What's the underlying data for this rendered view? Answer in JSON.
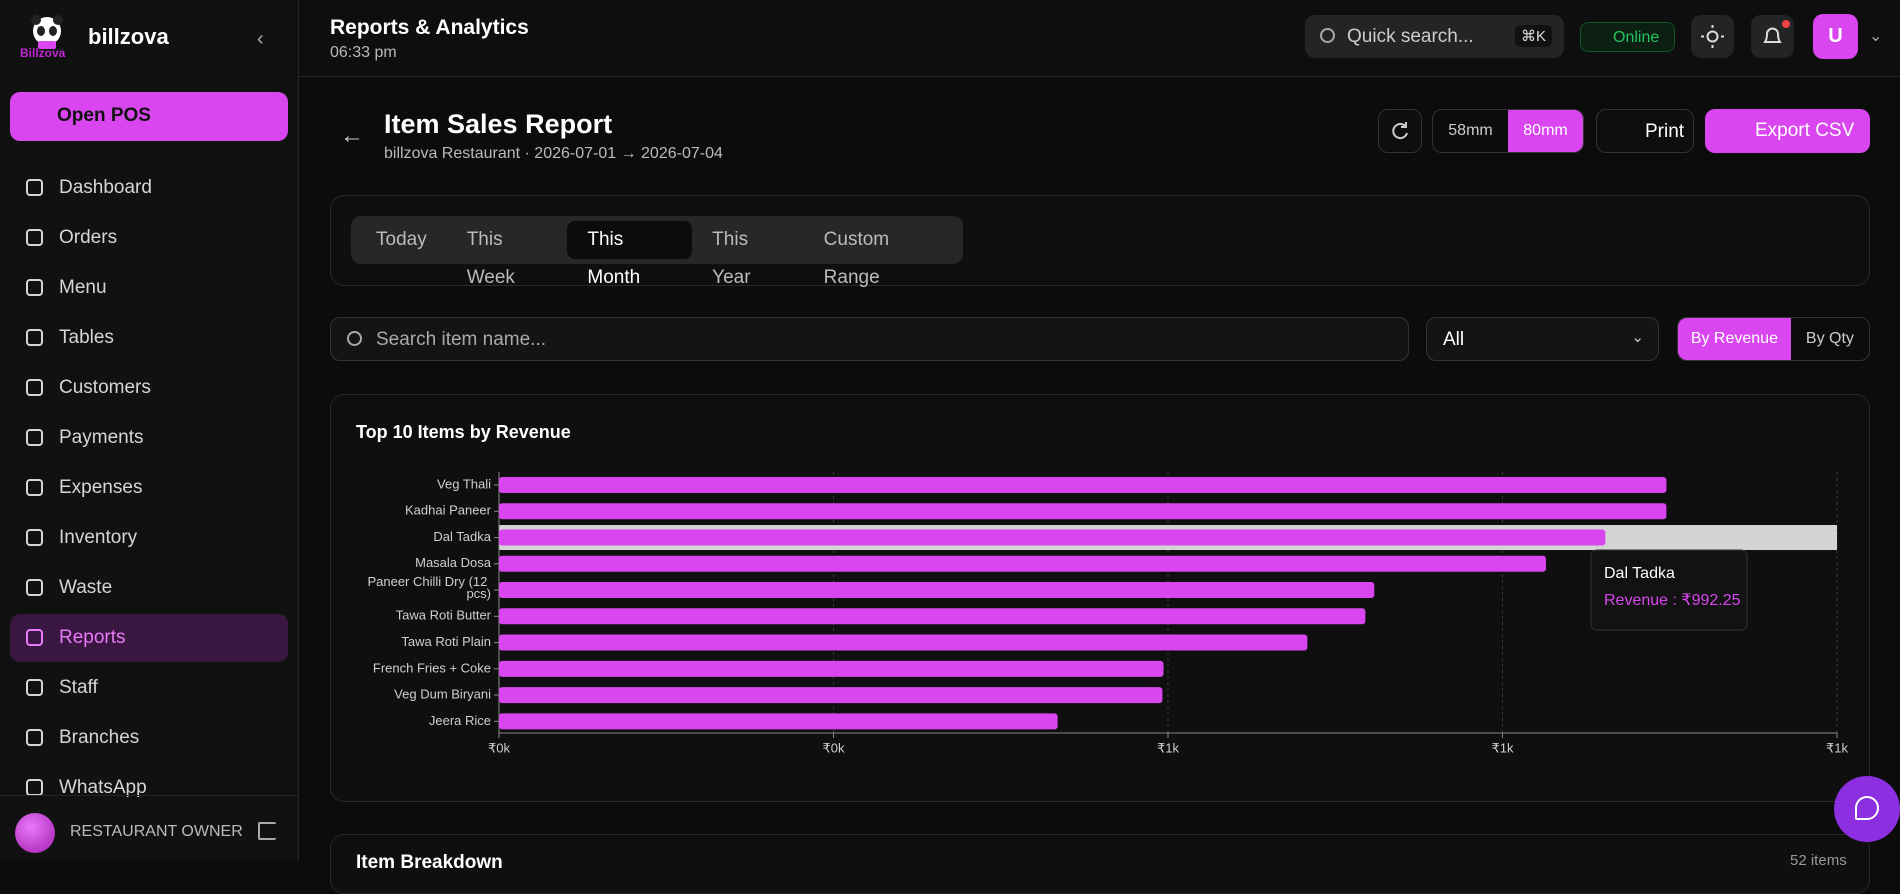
{
  "sidebar": {
    "brand": "billzova",
    "logo_text": "Billzova",
    "open_pos": "Open POS",
    "nav": [
      "Dashboard",
      "Orders",
      "Menu",
      "Tables",
      "Customers",
      "Payments",
      "Expenses",
      "Inventory",
      "Waste",
      "Reports",
      "Staff",
      "Branches",
      "WhatsApp"
    ],
    "active": "Reports",
    "user_role": "RESTAURANT OWNER"
  },
  "header": {
    "title": "Reports & Analytics",
    "time": "06:33 pm",
    "search": "Quick search...",
    "shortcut": "⌘K",
    "status": "Online",
    "avatar": "U"
  },
  "report": {
    "title": "Item Sales Report",
    "subtitle": "billzova Restaurant · 2026-07-01 → 2026-07-04",
    "paper": [
      "58mm",
      "80mm"
    ],
    "paper_active": "80mm",
    "print": "Print",
    "export": "Export CSV",
    "ranges": [
      "Today",
      "This Week",
      "This Month",
      "This Year",
      "Custom Range"
    ],
    "range_active": "This Month",
    "search_placeholder": "Search item name...",
    "filter": "All",
    "sort": [
      "By Revenue",
      "By Qty"
    ],
    "sort_active": "By Revenue"
  },
  "chart_data": {
    "type": "bar",
    "orientation": "horizontal",
    "title": "Top 10 Items by Revenue",
    "categories": [
      "Veg Thali",
      "Kadhai Paneer",
      "Dal Tadka",
      "Masala Dosa",
      "Paneer Chilli Dry (12 pcs)",
      "Tawa Roti Butter",
      "Tawa Roti Plain",
      "French Fries + Coke",
      "Veg Dum Biryani",
      "Jeera Rice"
    ],
    "values": [
      1047,
      1047,
      992.25,
      939,
      785,
      777,
      725,
      596,
      595,
      501
    ],
    "color": "#d946ef",
    "xlim": [
      0,
      1200
    ],
    "xticks": [
      {
        "value": 0,
        "label": "₹0k"
      },
      {
        "value": 300,
        "label": "₹0k"
      },
      {
        "value": 600,
        "label": "₹1k"
      },
      {
        "value": 900,
        "label": "₹1k"
      },
      {
        "value": 1200,
        "label": "₹1k"
      }
    ],
    "grid": true,
    "tooltip": {
      "index": 2,
      "label": "Revenue : ₹992.25"
    }
  },
  "next_section": {
    "title": "Item Breakdown",
    "count": "52 items"
  }
}
